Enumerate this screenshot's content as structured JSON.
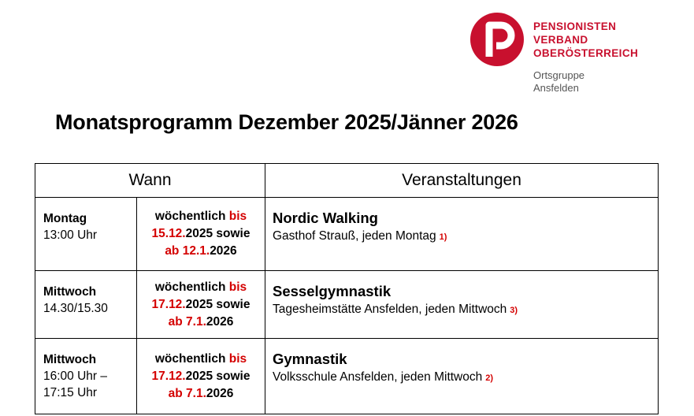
{
  "logo": {
    "icon": "pensionisten-p-icon",
    "brand_color": "#c8102e",
    "line1": "PENSIONISTEN",
    "line2": "VERBAND",
    "line3": "OBERÖSTERREICH",
    "sub1": "Ortsgruppe",
    "sub2": "Ansfelden"
  },
  "title": "Monatsprogramm Dezember 2025/Jänner 2026",
  "table": {
    "headers": {
      "when": "Wann",
      "events": "Veranstaltungen"
    },
    "rows": [
      {
        "day": "Montag",
        "time": "13:00 Uhr",
        "freq": {
          "a": "wöchentlich",
          "b": "bis",
          "c": "15.12.",
          "d": "2025 sowie",
          "e": "ab 12.1.",
          "f": "2026"
        },
        "event_title": "Nordic Walking",
        "event_desc": "Gasthof Strauß, jeden Montag",
        "note": "1)"
      },
      {
        "day": "Mittwoch",
        "time": "14.30/15.30",
        "freq": {
          "a": "wöchentlich",
          "b": "bis",
          "c": "17.12.",
          "d": "2025 sowie",
          "e": "ab 7.1.",
          "f": "2026"
        },
        "event_title": "Sesselgymnastik",
        "event_desc": "Tagesheimstätte Ansfelden, jeden Mittwoch",
        "note": "3)"
      },
      {
        "day": "Mittwoch",
        "time": "16:00 Uhr –\n17:15 Uhr",
        "freq": {
          "a": "wöchentlich",
          "b": "bis",
          "c": "17.12.",
          "d": "2025 sowie",
          "e": "ab 7.1.",
          "f": "2026"
        },
        "event_title": "Gymnastik",
        "event_desc": "Volksschule Ansfelden, jeden Mittwoch",
        "note": "2)"
      }
    ]
  }
}
